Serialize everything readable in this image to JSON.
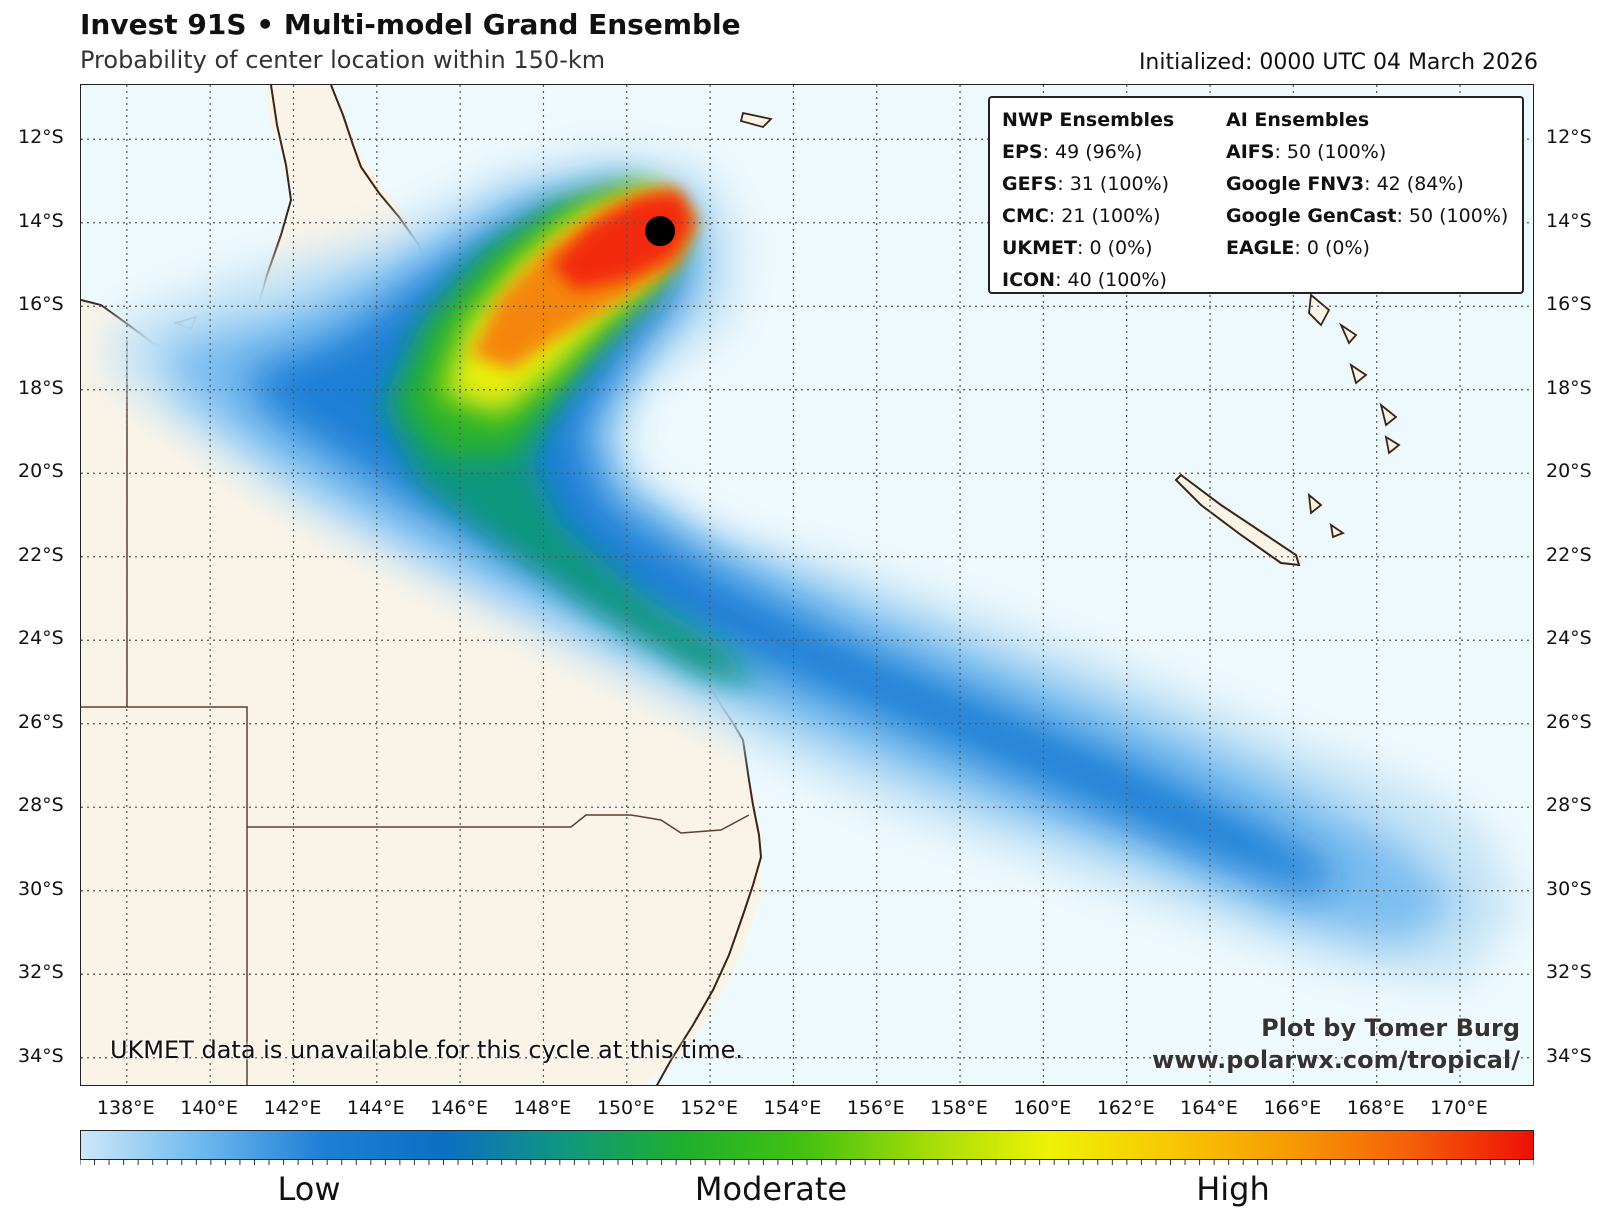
{
  "header": {
    "title": "Invest 91S • Multi-model Grand Ensemble",
    "subtitle": "Probability of center location within 150-km",
    "initialized": "Initialized: 0000 UTC 04 March 2026"
  },
  "map": {
    "lat_labels": [
      "12°S",
      "14°S",
      "16°S",
      "18°S",
      "20°S",
      "22°S",
      "24°S",
      "26°S",
      "28°S",
      "30°S",
      "32°S",
      "34°S"
    ],
    "lon_labels": [
      "138°E",
      "140°E",
      "142°E",
      "144°E",
      "146°E",
      "148°E",
      "150°E",
      "152°E",
      "154°E",
      "156°E",
      "158°E",
      "160°E",
      "162°E",
      "164°E",
      "166°E",
      "168°E",
      "170°E"
    ],
    "extent": {
      "lon_min": 136.9,
      "lon_max": 171.8,
      "lat_max": 10.7,
      "lat_min": 34.7
    },
    "storm_center": {
      "lon": 150.8,
      "lat": -14.2
    },
    "colors": {
      "ocean": "#eef9fd",
      "land": "#faf4e8",
      "coast": "#3b2314",
      "grid": "#555555",
      "marker": "#000000"
    }
  },
  "legend": {
    "nwp_header": "NWP Ensembles",
    "ai_header": "AI Ensembles",
    "nwp": [
      {
        "model": "EPS",
        "value": ": 49 (96%)"
      },
      {
        "model": "GEFS",
        "value": ": 31 (100%)"
      },
      {
        "model": "CMC",
        "value": ": 21 (100%)"
      },
      {
        "model": "UKMET",
        "value": ": 0 (0%)"
      },
      {
        "model": "ICON",
        "value": ": 40 (100%)"
      }
    ],
    "ai": [
      {
        "model": "AIFS",
        "value": ": 50 (100%)"
      },
      {
        "model": "Google FNV3",
        "value": ": 42 (84%)"
      },
      {
        "model": "Google GenCast",
        "value": ": 50 (100%)"
      },
      {
        "model": "EAGLE",
        "value": ": 0 (0%)"
      }
    ]
  },
  "note": "UKMET data is unavailable for this cycle at this time.",
  "credit": {
    "line1": "Plot by Tomer Burg",
    "line2": "www.polarwx.com/tropical/"
  },
  "colorbar": {
    "labels": [
      "Low",
      "Moderate",
      "High"
    ],
    "colors": [
      "#cde8f8",
      "#6db8ee",
      "#1e7fd6",
      "#0b6fc4",
      "#10977e",
      "#1fb02c",
      "#44c20f",
      "#a4dc08",
      "#eef205",
      "#f8c804",
      "#f79a05",
      "#f55e08",
      "#ee1005"
    ]
  }
}
